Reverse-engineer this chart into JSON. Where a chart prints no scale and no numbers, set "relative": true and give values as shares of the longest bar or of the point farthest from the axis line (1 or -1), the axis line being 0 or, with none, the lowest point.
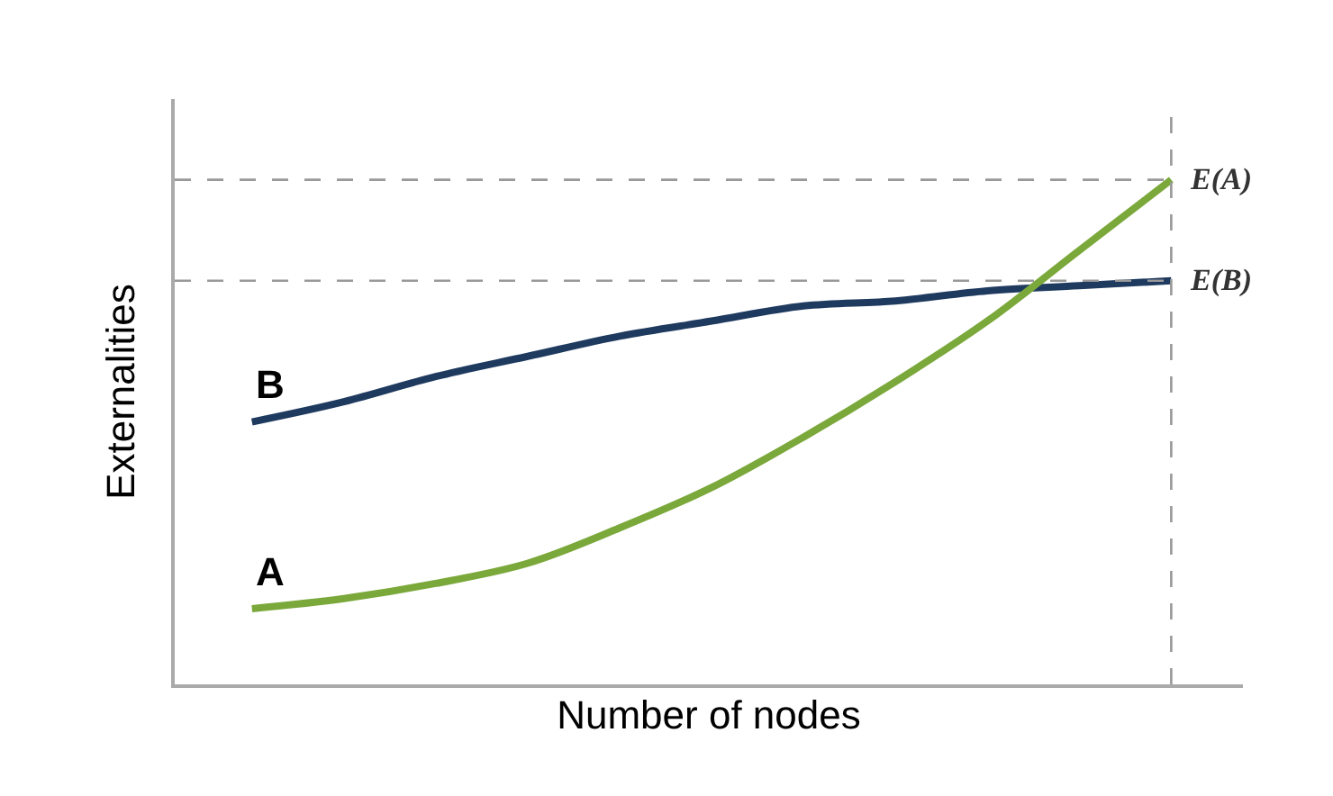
{
  "chart_data": {
    "type": "line",
    "relative": true,
    "xlabel": "Number of nodes",
    "ylabel": "Externalities",
    "categories": [
      null,
      null,
      null,
      null,
      null,
      null,
      null,
      null,
      null,
      null,
      null
    ],
    "series": [
      {
        "name": "B",
        "color": "#1f3a5f",
        "values": [
          0.52,
          0.56,
          0.61,
          0.65,
          0.69,
          0.72,
          0.75,
          0.76,
          0.78,
          0.79,
          0.8
        ]
      },
      {
        "name": "A",
        "color": "#7aa83a",
        "values": [
          0.15,
          0.17,
          0.2,
          0.24,
          0.31,
          0.39,
          0.49,
          0.6,
          0.72,
          0.86,
          1.0
        ]
      }
    ],
    "ref_lines": [
      {
        "axis": "y",
        "value": 1.0,
        "label": "E(A)",
        "color": "#999999",
        "line_style": "dashed"
      },
      {
        "axis": "y",
        "value": 0.8,
        "label": "E(B)",
        "color": "#999999",
        "line_style": "dashed"
      }
    ],
    "legend": false,
    "marker": "none",
    "line_style": "solid",
    "tick_labels": false
  }
}
